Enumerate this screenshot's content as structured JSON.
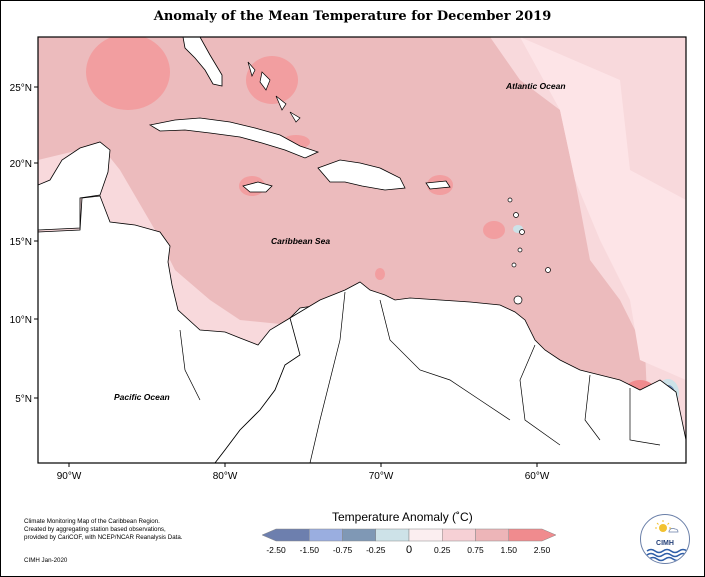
{
  "title": "Anomaly of the Mean Temperature for December 2019",
  "latitude_labels": [
    "25°N",
    "20°N",
    "15°N",
    "10°N",
    "5°N"
  ],
  "longitude_labels": [
    "90°W",
    "80°W",
    "70°W",
    "60°W"
  ],
  "ocean_labels": {
    "atlantic": "Atlantic Ocean",
    "caribbean": "Caribbean Sea",
    "pacific": "Pacific Ocean"
  },
  "legend": {
    "title": "Temperature Anomaly (˚C)",
    "tick_labels": [
      "-2.50",
      "-1.50",
      "-0.75",
      "-0.25",
      "0",
      "0.25",
      "0.75",
      "1.50",
      "2.50"
    ],
    "colors": [
      "#6d7fae",
      "#9aaee0",
      "#7f98b5",
      "#cde2e8",
      "#fbeef0",
      "#f6d0d5",
      "#edb5b8",
      "#f08b8e"
    ]
  },
  "credit_lines": [
    "Climate Monitoring Map of the Caribbean Region.",
    "Created by aggregating station based observations,",
    "provided by CariCOF, with NCEP/NCAR Reanalysis Data."
  ],
  "credit_date": "CIMH Jan-2020",
  "logo": {
    "text": "CIMH",
    "icon": "cimh-logo-icon"
  }
}
